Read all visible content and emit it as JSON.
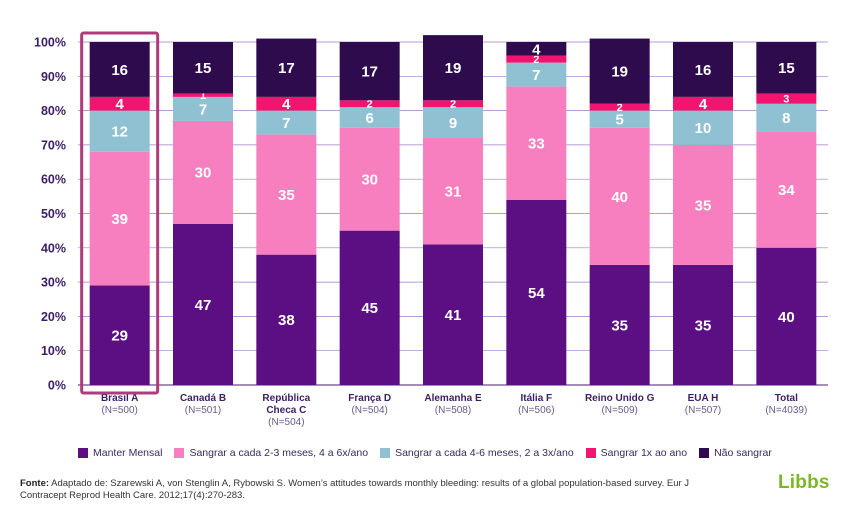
{
  "chart_data": {
    "type": "bar",
    "stacked": true,
    "title": "",
    "xlabel": "",
    "ylabel": "",
    "ylim": [
      0,
      100
    ],
    "yticks": [
      "0%",
      "10%",
      "20%",
      "30%",
      "40%",
      "50%",
      "60%",
      "70%",
      "80%",
      "90%",
      "100%"
    ],
    "categories": [
      {
        "name": "Brasil A",
        "n": "(N=500)",
        "highlight": true
      },
      {
        "name": "Canadá B",
        "n": "(N=501)"
      },
      {
        "name": "República Checa C",
        "line1": "República",
        "line2": "Checa C",
        "n": "(N=504)"
      },
      {
        "name": "França D",
        "n": "(N=504)"
      },
      {
        "name": "Alemanha E",
        "n": "(N=508)"
      },
      {
        "name": "Itália F",
        "n": "(N=506)"
      },
      {
        "name": "Reino Unido G",
        "n": "(N=509)"
      },
      {
        "name": "EUA H",
        "n": "(N=507)"
      },
      {
        "name": "Total",
        "n": "(N=4039)"
      }
    ],
    "series": [
      {
        "name": "Manter Mensal",
        "color": "#5b0f82",
        "label_color": "#ffffff",
        "values": [
          29,
          47,
          38,
          45,
          41,
          54,
          35,
          35,
          40
        ]
      },
      {
        "name": "Sangrar a cada 2-3 meses, 4 a 6x/ano",
        "color": "#f77fc0",
        "label_color": "#ffffff",
        "values": [
          39,
          30,
          35,
          30,
          31,
          33,
          40,
          35,
          34
        ]
      },
      {
        "name": "Sangrar a cada 4-6 meses, 2 a 3x/ano",
        "color": "#8fc1d3",
        "label_color": "#ffffff",
        "values": [
          12,
          7,
          7,
          6,
          9,
          7,
          5,
          10,
          8
        ]
      },
      {
        "name": "Sangrar 1x ao ano",
        "color": "#f2146e",
        "label_color": "#ffffff",
        "values": [
          4,
          1,
          4,
          2,
          2,
          2,
          2,
          4,
          3
        ]
      },
      {
        "name": "Não sangrar",
        "color": "#2e0b4d",
        "label_color": "#ffffff",
        "values": [
          16,
          15,
          17,
          17,
          19,
          4,
          19,
          16,
          15
        ]
      }
    ],
    "legend_position": "bottom",
    "highlight_color": "#b03a7a"
  },
  "footer": {
    "source_label": "Fonte:",
    "source_text": " Adaptado de: Szarewski A, von Stenglin A, Rybowski S. Women’s attitudes towards monthly bleeding: results of a global population-based survey. Eur J Contracept Reprod Health Care. 2012;17(4):270-283.",
    "logo": "Libbs"
  }
}
